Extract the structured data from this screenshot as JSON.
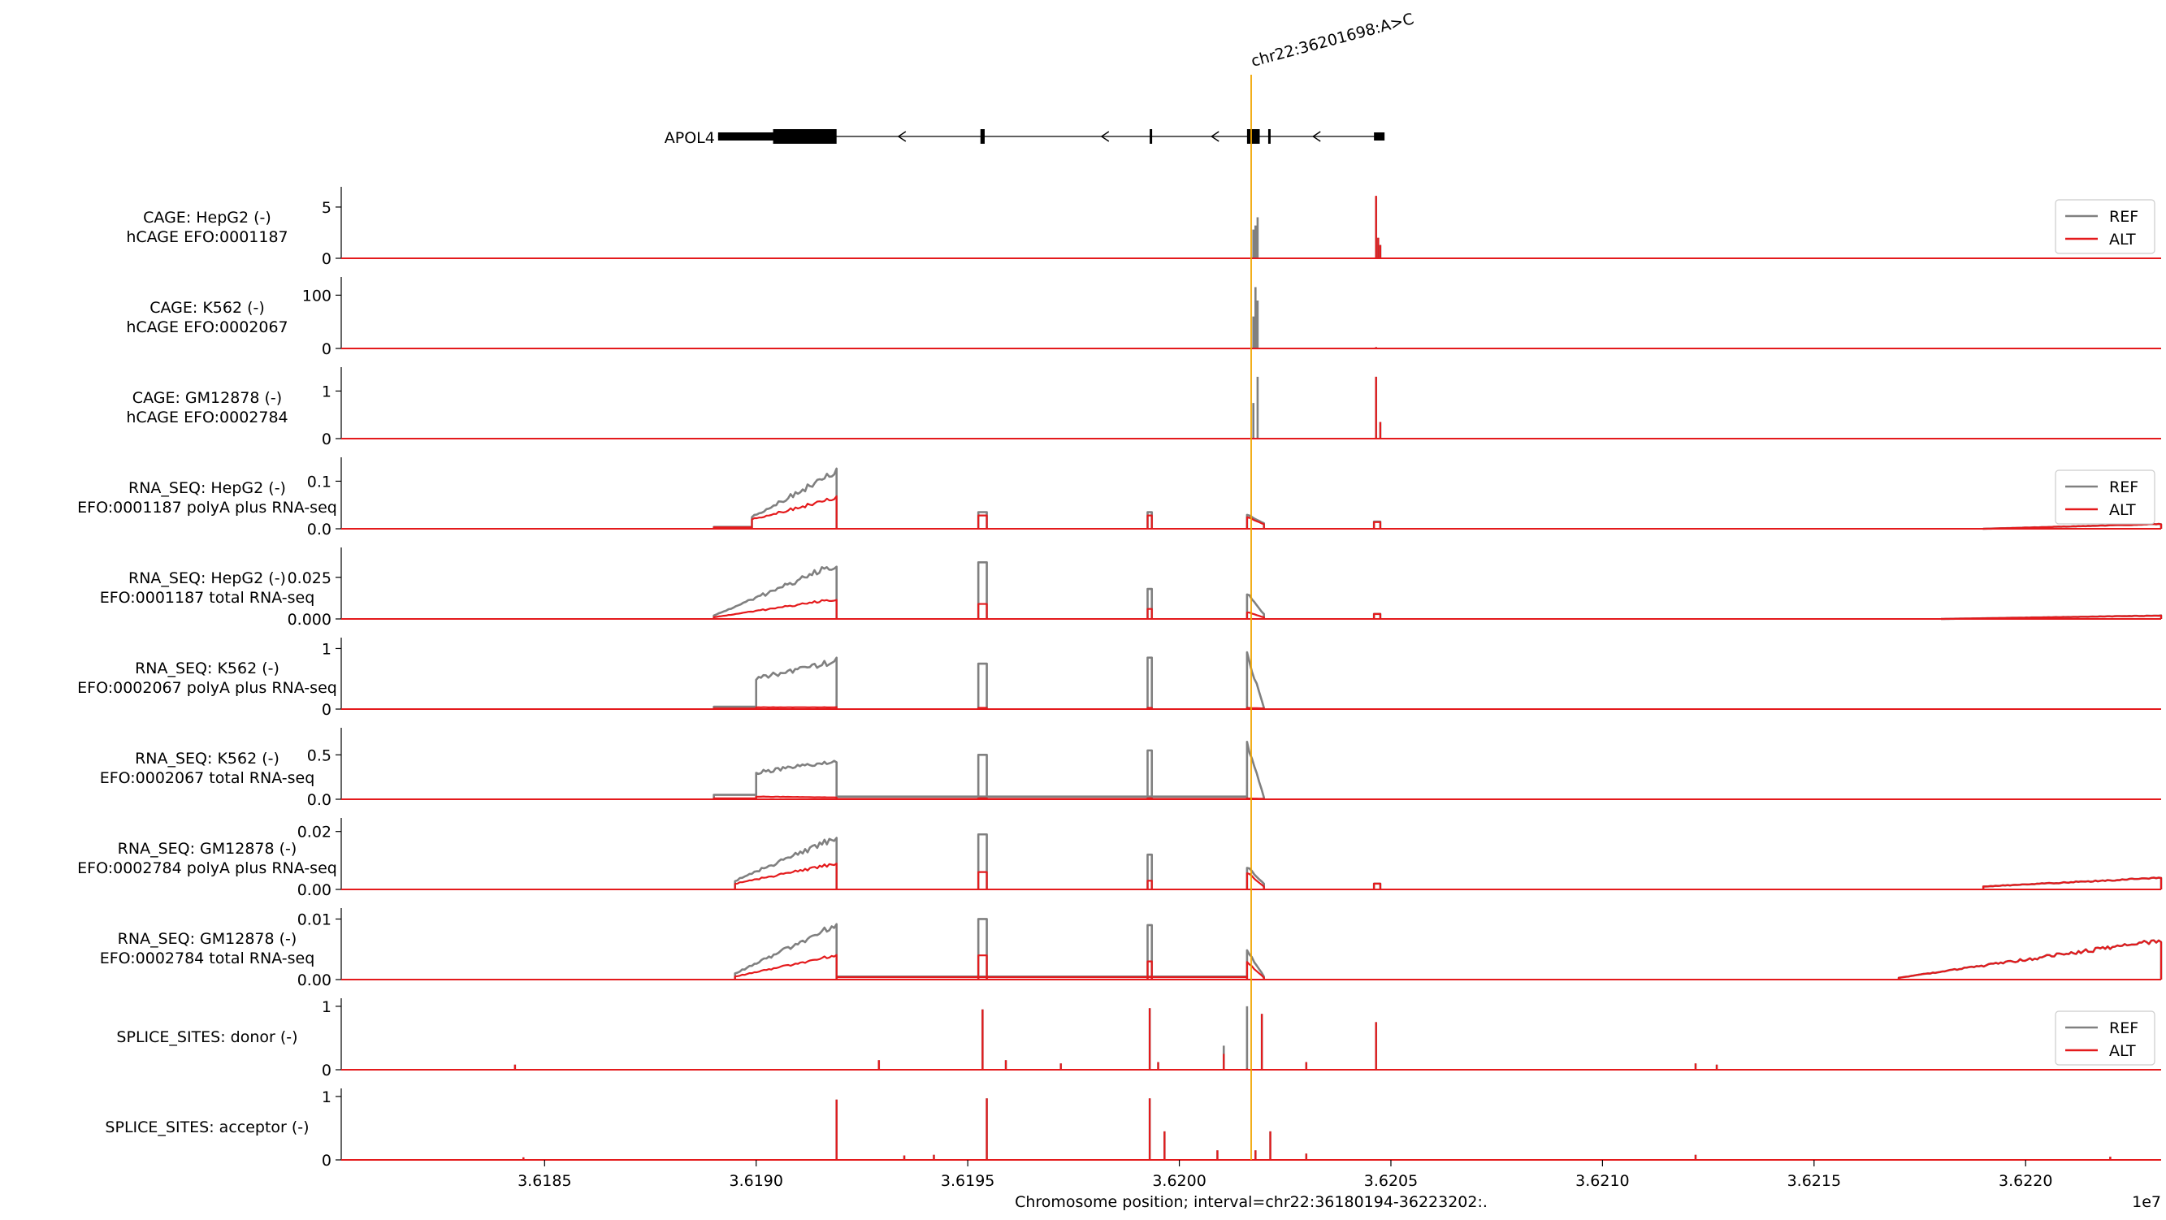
{
  "chart_data": {
    "type": "line",
    "variant": {
      "label": "chr22:36201698:A>C",
      "position": 36201698
    },
    "gene": {
      "name": "APOL4",
      "strand": "-",
      "start": 36189100,
      "end": 36204800,
      "exons": [
        [
          36189100,
          36191400,
          "utr"
        ],
        [
          36190400,
          36191900,
          "cds"
        ],
        [
          36195300,
          36195400,
          "cds"
        ],
        [
          36199300,
          36199330,
          "cds"
        ],
        [
          36201600,
          36201900,
          "cds"
        ],
        [
          36202100,
          36202150,
          "cds"
        ],
        [
          36204600,
          36204850,
          "utr"
        ]
      ],
      "arrows": [
        36193400,
        36198200,
        36200800,
        36203200
      ]
    },
    "x_axis": {
      "label": "Chromosome position; interval=chr22:36180194-36223202:.",
      "xlim": [
        36180194,
        36223202
      ],
      "ticks": [
        36185000,
        36190000,
        36195000,
        36200000,
        36205000,
        36210000,
        36215000,
        36220000
      ],
      "tick_labels": [
        "3.6185",
        "3.6190",
        "3.6195",
        "3.6200",
        "3.6205",
        "3.6210",
        "3.6215",
        "3.6220"
      ],
      "offset_label": "1e7"
    },
    "series_names": [
      "REF",
      "ALT"
    ],
    "colors": {
      "REF": "#808080",
      "ALT": "#e41a1c",
      "variant": "#f0a500"
    },
    "tracks": [
      {
        "label_line1": "CAGE: HepG2 (-)",
        "label_line2": "hCAGE EFO:0001187",
        "ylim": [
          0,
          6.5
        ],
        "yticks": [
          0,
          5
        ],
        "ytick_labels": [
          "0",
          "5"
        ],
        "legend": true,
        "features": [
          {
            "type": "spike",
            "x": 36201750,
            "ref": 2.8,
            "alt": 0.03
          },
          {
            "type": "spike",
            "x": 36201850,
            "ref": 4.0,
            "alt": 0.05
          },
          {
            "type": "spike",
            "x": 36201800,
            "ref": 3.2,
            "alt": 0.04
          },
          {
            "type": "spike",
            "x": 36204650,
            "ref": 6.0,
            "alt": 6.1
          },
          {
            "type": "spike",
            "x": 36204750,
            "ref": 1.3,
            "alt": 1.3
          },
          {
            "type": "spike",
            "x": 36204700,
            "ref": 2.0,
            "alt": 2.0
          }
        ]
      },
      {
        "label_line1": "CAGE: K562 (-)",
        "label_line2": "hCAGE EFO:0002067",
        "ylim": [
          0,
          125
        ],
        "yticks": [
          0,
          100
        ],
        "ytick_labels": [
          "0",
          "100"
        ],
        "legend": false,
        "features": [
          {
            "type": "spike",
            "x": 36201750,
            "ref": 60,
            "alt": 1
          },
          {
            "type": "spike",
            "x": 36201800,
            "ref": 115,
            "alt": 1
          },
          {
            "type": "spike",
            "x": 36201850,
            "ref": 90,
            "alt": 1
          },
          {
            "type": "spike",
            "x": 36204650,
            "ref": 2.5,
            "alt": 2.5
          }
        ]
      },
      {
        "label_line1": "CAGE: GM12878 (-)",
        "label_line2": "hCAGE EFO:0002784",
        "ylim": [
          0,
          1.4
        ],
        "yticks": [
          0,
          1
        ],
        "ytick_labels": [
          "0",
          "1"
        ],
        "legend": false,
        "features": [
          {
            "type": "spike",
            "x": 36201750,
            "ref": 0.75,
            "alt": 0.02
          },
          {
            "type": "spike",
            "x": 36201850,
            "ref": 1.3,
            "alt": 0.02
          },
          {
            "type": "spike",
            "x": 36204650,
            "ref": 1.3,
            "alt": 1.3
          },
          {
            "type": "spike",
            "x": 36204750,
            "ref": 0.35,
            "alt": 0.35
          }
        ]
      },
      {
        "label_line1": "RNA_SEQ: HepG2 (-)",
        "label_line2": "EFO:0001187 polyA plus RNA-seq",
        "ylim": [
          0,
          0.14
        ],
        "yticks": [
          0,
          0.1
        ],
        "ytick_labels": [
          "0.0",
          "0.1"
        ],
        "legend": true,
        "features": [
          {
            "type": "block",
            "x0": 36189000,
            "x1": 36189900,
            "ref": 0.004,
            "alt": 0.003
          },
          {
            "type": "ramp",
            "x0": 36189900,
            "x1": 36191900,
            "ref": [
              0.025,
              0.12
            ],
            "alt": [
              0.02,
              0.065
            ]
          },
          {
            "type": "block",
            "x0": 36195250,
            "x1": 36195450,
            "ref": 0.035,
            "alt": 0.028
          },
          {
            "type": "block",
            "x0": 36199250,
            "x1": 36199350,
            "ref": 0.035,
            "alt": 0.028
          },
          {
            "type": "ramp",
            "x0": 36201600,
            "x1": 36202000,
            "ref": [
              0.03,
              0.012
            ],
            "alt": [
              0.025,
              0.01
            ]
          },
          {
            "type": "block",
            "x0": 36204600,
            "x1": 36204750,
            "ref": 0.015,
            "alt": 0.014
          },
          {
            "type": "ramp",
            "x0": 36219000,
            "x1": 36223202,
            "ref": [
              0.0,
              0.01
            ],
            "alt": [
              0.0,
              0.01
            ]
          }
        ]
      },
      {
        "label_line1": "RNA_SEQ: HepG2 (-)",
        "label_line2": "EFO:0001187 total RNA-seq",
        "ylim": [
          0,
          0.04
        ],
        "yticks": [
          0,
          0.025
        ],
        "ytick_labels": [
          "0.000",
          "0.025"
        ],
        "legend": false,
        "features": [
          {
            "type": "ramp",
            "x0": 36189000,
            "x1": 36191900,
            "ref": [
              0.002,
              0.033
            ],
            "alt": [
              0.001,
              0.012
            ]
          },
          {
            "type": "block",
            "x0": 36195250,
            "x1": 36195450,
            "ref": 0.034,
            "alt": 0.009
          },
          {
            "type": "block",
            "x0": 36199250,
            "x1": 36199350,
            "ref": 0.018,
            "alt": 0.006
          },
          {
            "type": "ramp",
            "x0": 36201600,
            "x1": 36202000,
            "ref": [
              0.015,
              0.003
            ],
            "alt": [
              0.004,
              0.001
            ]
          },
          {
            "type": "block",
            "x0": 36204600,
            "x1": 36204750,
            "ref": 0.003,
            "alt": 0.003
          },
          {
            "type": "ramp",
            "x0": 36218000,
            "x1": 36223202,
            "ref": [
              0.0,
              0.002
            ],
            "alt": [
              0.0,
              0.002
            ]
          }
        ]
      },
      {
        "label_line1": "RNA_SEQ: K562 (-)",
        "label_line2": "EFO:0002067 polyA plus RNA-seq",
        "ylim": [
          0,
          1.1
        ],
        "yticks": [
          0,
          1
        ],
        "ytick_labels": [
          "0",
          "1"
        ],
        "legend": false,
        "features": [
          {
            "type": "block",
            "x0": 36189000,
            "x1": 36190000,
            "ref": 0.04,
            "alt": 0.01
          },
          {
            "type": "ramp",
            "x0": 36190000,
            "x1": 36191900,
            "ref": [
              0.5,
              0.8
            ],
            "alt": [
              0.03,
              0.03
            ]
          },
          {
            "type": "block",
            "x0": 36195250,
            "x1": 36195450,
            "ref": 0.75,
            "alt": 0.02
          },
          {
            "type": "block",
            "x0": 36199250,
            "x1": 36199350,
            "ref": 0.85,
            "alt": 0.02
          },
          {
            "type": "ramp",
            "x0": 36201600,
            "x1": 36202000,
            "ref": [
              0.9,
              0.02
            ],
            "alt": [
              0.02,
              0.01
            ]
          }
        ]
      },
      {
        "label_line1": "RNA_SEQ: K562 (-)",
        "label_line2": "EFO:0002067 total RNA-seq",
        "ylim": [
          0,
          0.75
        ],
        "yticks": [
          0,
          0.5
        ],
        "ytick_labels": [
          "0.0",
          "0.5"
        ],
        "legend": false,
        "features": [
          {
            "type": "block",
            "x0": 36189000,
            "x1": 36190000,
            "ref": 0.05,
            "alt": 0.01
          },
          {
            "type": "ramp",
            "x0": 36190000,
            "x1": 36191900,
            "ref": [
              0.3,
              0.42
            ],
            "alt": [
              0.03,
              0.02
            ]
          },
          {
            "type": "block",
            "x0": 36191900,
            "x1": 36201600,
            "ref": 0.03,
            "alt": 0.005
          },
          {
            "type": "block",
            "x0": 36195250,
            "x1": 36195450,
            "ref": 0.5,
            "alt": 0.01
          },
          {
            "type": "block",
            "x0": 36199250,
            "x1": 36199350,
            "ref": 0.55,
            "alt": 0.01
          },
          {
            "type": "ramp",
            "x0": 36201600,
            "x1": 36202000,
            "ref": [
              0.65,
              0.02
            ],
            "alt": [
              0.01,
              0.005
            ]
          }
        ]
      },
      {
        "label_line1": "RNA_SEQ: GM12878 (-)",
        "label_line2": "EFO:0002784 polyA plus RNA-seq",
        "ylim": [
          0,
          0.023
        ],
        "yticks": [
          0,
          0.02
        ],
        "ytick_labels": [
          "0.00",
          "0.02"
        ],
        "legend": false,
        "features": [
          {
            "type": "ramp",
            "x0": 36189500,
            "x1": 36191900,
            "ref": [
              0.003,
              0.018
            ],
            "alt": [
              0.002,
              0.009
            ]
          },
          {
            "type": "block",
            "x0": 36195250,
            "x1": 36195450,
            "ref": 0.019,
            "alt": 0.006
          },
          {
            "type": "block",
            "x0": 36199250,
            "x1": 36199350,
            "ref": 0.012,
            "alt": 0.003
          },
          {
            "type": "ramp",
            "x0": 36201600,
            "x1": 36202000,
            "ref": [
              0.008,
              0.002
            ],
            "alt": [
              0.006,
              0.001
            ]
          },
          {
            "type": "block",
            "x0": 36204600,
            "x1": 36204750,
            "ref": 0.002,
            "alt": 0.002
          },
          {
            "type": "ramp",
            "x0": 36219000,
            "x1": 36223202,
            "ref": [
              0.001,
              0.004
            ],
            "alt": [
              0.001,
              0.004
            ]
          }
        ]
      },
      {
        "label_line1": "RNA_SEQ: GM12878 (-)",
        "label_line2": "EFO:0002784 total RNA-seq",
        "ylim": [
          0,
          0.011
        ],
        "yticks": [
          0,
          0.01
        ],
        "ytick_labels": [
          "0.00",
          "0.01"
        ],
        "legend": false,
        "features": [
          {
            "type": "ramp",
            "x0": 36189500,
            "x1": 36191900,
            "ref": [
              0.001,
              0.009
            ],
            "alt": [
              0.0005,
              0.004
            ]
          },
          {
            "type": "block",
            "x0": 36191900,
            "x1": 36201600,
            "ref": 0.0005,
            "alt": 0.0004
          },
          {
            "type": "block",
            "x0": 36195250,
            "x1": 36195450,
            "ref": 0.01,
            "alt": 0.004
          },
          {
            "type": "block",
            "x0": 36199250,
            "x1": 36199350,
            "ref": 0.009,
            "alt": 0.003
          },
          {
            "type": "ramp",
            "x0": 36201600,
            "x1": 36202000,
            "ref": [
              0.005,
              0.0005
            ],
            "alt": [
              0.003,
              0.0003
            ]
          },
          {
            "type": "ramp",
            "x0": 36217000,
            "x1": 36223202,
            "ref": [
              0.0003,
              0.0065
            ],
            "alt": [
              0.0003,
              0.0065
            ]
          }
        ]
      },
      {
        "label_line1": "SPLICE_SITES: donor (-)",
        "label_line2": "",
        "ylim": [
          0,
          1.05
        ],
        "yticks": [
          0,
          1
        ],
        "ytick_labels": [
          "0",
          "1"
        ],
        "legend": true,
        "features": [
          {
            "type": "spike",
            "x": 36184300,
            "ref": 0.08,
            "alt": 0.08
          },
          {
            "type": "spike",
            "x": 36192900,
            "ref": 0.15,
            "alt": 0.15
          },
          {
            "type": "spike",
            "x": 36195350,
            "ref": 0.95,
            "alt": 0.95
          },
          {
            "type": "spike",
            "x": 36195900,
            "ref": 0.15,
            "alt": 0.15
          },
          {
            "type": "spike",
            "x": 36197200,
            "ref": 0.1,
            "alt": 0.1
          },
          {
            "type": "spike",
            "x": 36199300,
            "ref": 0.97,
            "alt": 0.97
          },
          {
            "type": "spike",
            "x": 36199500,
            "ref": 0.12,
            "alt": 0.12
          },
          {
            "type": "spike",
            "x": 36201050,
            "ref": 0.38,
            "alt": 0.25
          },
          {
            "type": "spike",
            "x": 36201600,
            "ref": 1.0,
            "alt": 0.02
          },
          {
            "type": "spike",
            "x": 36201950,
            "ref": 0.88,
            "alt": 0.88
          },
          {
            "type": "spike",
            "x": 36203000,
            "ref": 0.12,
            "alt": 0.12
          },
          {
            "type": "spike",
            "x": 36204650,
            "ref": 0.75,
            "alt": 0.75
          },
          {
            "type": "spike",
            "x": 36212200,
            "ref": 0.1,
            "alt": 0.1
          },
          {
            "type": "spike",
            "x": 36212700,
            "ref": 0.08,
            "alt": 0.08
          }
        ]
      },
      {
        "label_line1": "SPLICE_SITES: acceptor (-)",
        "label_line2": "",
        "ylim": [
          0,
          1.05
        ],
        "yticks": [
          0,
          1
        ],
        "ytick_labels": [
          "0",
          "1"
        ],
        "legend": false,
        "features": [
          {
            "type": "spike",
            "x": 36184500,
            "ref": 0.04,
            "alt": 0.04
          },
          {
            "type": "spike",
            "x": 36191900,
            "ref": 0.95,
            "alt": 0.95
          },
          {
            "type": "spike",
            "x": 36193500,
            "ref": 0.07,
            "alt": 0.07
          },
          {
            "type": "spike",
            "x": 36194200,
            "ref": 0.08,
            "alt": 0.08
          },
          {
            "type": "spike",
            "x": 36195450,
            "ref": 0.97,
            "alt": 0.97
          },
          {
            "type": "spike",
            "x": 36199300,
            "ref": 0.97,
            "alt": 0.97
          },
          {
            "type": "spike",
            "x": 36199650,
            "ref": 0.45,
            "alt": 0.45
          },
          {
            "type": "spike",
            "x": 36200900,
            "ref": 0.15,
            "alt": 0.15
          },
          {
            "type": "spike",
            "x": 36201800,
            "ref": 0.15,
            "alt": 0.15
          },
          {
            "type": "spike",
            "x": 36202150,
            "ref": 0.45,
            "alt": 0.45
          },
          {
            "type": "spike",
            "x": 36203000,
            "ref": 0.1,
            "alt": 0.1
          },
          {
            "type": "spike",
            "x": 36212200,
            "ref": 0.08,
            "alt": 0.08
          },
          {
            "type": "spike",
            "x": 36222000,
            "ref": 0.05,
            "alt": 0.05
          }
        ]
      }
    ]
  }
}
